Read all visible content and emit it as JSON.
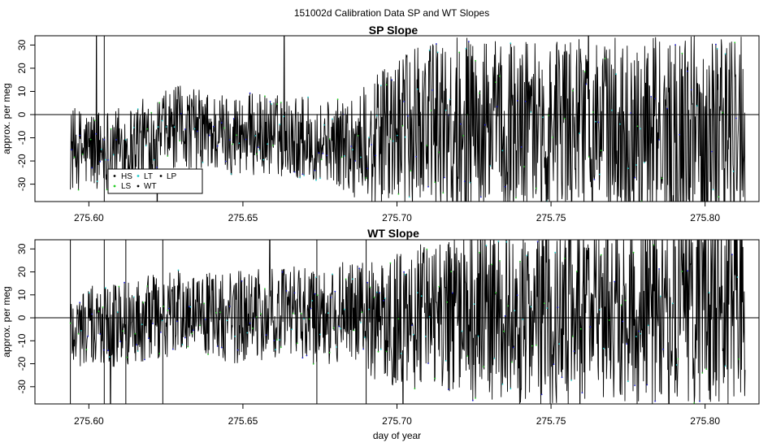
{
  "figure": {
    "main_title": "151002d   Calibration Data SP and WT Slopes"
  },
  "colors": {
    "HS": "#000000",
    "LS": "#22cc22",
    "LT": "#22cccc",
    "WT": "#000000",
    "LP": "#000000",
    "blue_points": "#1a1acc",
    "trace": "#000000"
  },
  "legend": {
    "placement": "bottom-left",
    "entries": [
      {
        "key": "HS",
        "label": "HS"
      },
      {
        "key": "LT",
        "label": "LT"
      },
      {
        "key": "LP",
        "label": "LP"
      },
      {
        "key": "LS",
        "label": "LS"
      },
      {
        "key": "WT",
        "label": "WT"
      }
    ]
  },
  "chart_data": [
    {
      "type": "line",
      "title": "SP Slope",
      "xlabel": "",
      "ylabel": "approx. per meg",
      "xlim": [
        275.5825,
        275.8175
      ],
      "ylim": [
        -37.5,
        34
      ],
      "xticks": [
        275.6,
        275.65,
        275.7,
        275.75,
        275.8
      ],
      "xtick_labels": [
        "275.60",
        "275.65",
        "275.70",
        "275.75",
        "275.80"
      ],
      "yticks": [
        -30,
        -20,
        -10,
        0,
        10,
        20,
        30
      ],
      "ytick_labels": [
        "-30",
        "-20",
        "-10",
        "0",
        "10",
        "20",
        "30"
      ],
      "reference_line_y": 0,
      "x_range_data": [
        275.594,
        275.813
      ],
      "series": [
        {
          "x": [
            275.594,
            275.6,
            275.61,
            275.62,
            275.63,
            275.64,
            275.65,
            275.66,
            275.67,
            275.68,
            275.69,
            275.7,
            275.71,
            275.72,
            275.73,
            275.74,
            275.75,
            275.76,
            275.77,
            275.78,
            275.79,
            275.8,
            275.81,
            275.813
          ],
          "values": [
            -15,
            -15,
            -14,
            -10,
            -5,
            -8,
            -8,
            -9,
            -10,
            -12,
            -13,
            -8,
            -4,
            -6,
            -7,
            -5,
            -6,
            -5,
            -6,
            -6,
            -8,
            -7,
            -6,
            -5
          ]
        }
      ],
      "spread": [
        [
          275.594,
          20
        ],
        [
          275.63,
          20
        ],
        [
          275.68,
          20
        ],
        [
          275.69,
          30
        ],
        [
          275.72,
          45
        ],
        [
          275.76,
          42
        ],
        [
          275.8,
          48
        ],
        [
          275.813,
          50
        ]
      ]
    },
    {
      "type": "line",
      "title": "WT Slope",
      "xlabel": "day of year",
      "ylabel": "approx. per meg",
      "xlim": [
        275.5825,
        275.8175
      ],
      "ylim": [
        -37.5,
        34
      ],
      "xticks": [
        275.6,
        275.65,
        275.7,
        275.75,
        275.8
      ],
      "xtick_labels": [
        "275.60",
        "275.65",
        "275.70",
        "275.75",
        "275.80"
      ],
      "yticks": [
        -30,
        -20,
        -10,
        0,
        10,
        20,
        30
      ],
      "ytick_labels": [
        "-30",
        "-20",
        "-10",
        "0",
        "10",
        "20",
        "30"
      ],
      "reference_line_y": 0,
      "x_range_data": [
        275.594,
        275.813
      ],
      "series": [
        {
          "x": [
            275.594,
            275.6,
            275.61,
            275.62,
            275.63,
            275.64,
            275.65,
            275.66,
            275.67,
            275.68,
            275.69,
            275.7,
            275.71,
            275.72,
            275.73,
            275.74,
            275.75,
            275.76,
            275.77,
            275.78,
            275.79,
            275.8,
            275.81,
            275.813
          ],
          "values": [
            -4,
            -4,
            -3,
            0,
            2,
            0,
            0,
            1,
            1,
            2,
            0,
            -1,
            1,
            1,
            1,
            1,
            1,
            2,
            2,
            2,
            5,
            6,
            6,
            6
          ]
        }
      ],
      "spread": [
        [
          275.594,
          20
        ],
        [
          275.64,
          22
        ],
        [
          275.68,
          25
        ],
        [
          275.7,
          32
        ],
        [
          275.73,
          45
        ],
        [
          275.77,
          45
        ],
        [
          275.8,
          50
        ],
        [
          275.813,
          50
        ]
      ]
    }
  ]
}
